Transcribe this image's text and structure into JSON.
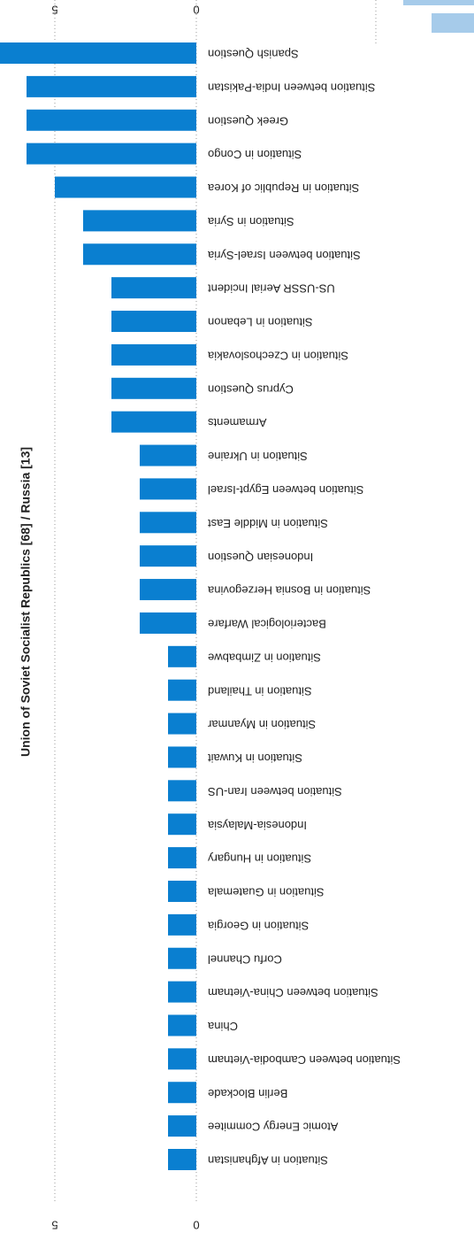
{
  "chart_data": {
    "type": "bar",
    "orientation": "horizontal",
    "title": "Union of Soviet Socialist Republics [68] / Russia [13]",
    "categories": [
      "Spanish Question",
      "Situation between India-Pakistan",
      "Greek Question",
      "Situation in Congo",
      "Situation in Republic of Korea",
      "Situation in Syria",
      "Situation between Israel-Syria",
      "US-USSR Aerial Incident",
      "Situation in Lebanon",
      "Situation in Czechoslovakia",
      "Cyprus Question",
      "Armaments",
      "Situation in Ukraine",
      "Situation between Egypt-Israel",
      "Situation in Middle East",
      "Indonesian Question",
      "Situation in Bosnia Herzegovina",
      "Bacteriological Warfare",
      "Situation in Zimbabwe",
      "Situation in Thailand",
      "Situation in Myanmar",
      "Situation in Kuwait",
      "Situation between Iran-US",
      "Indonesia-Malaysia",
      "Situation in Hungary",
      "Situation in Guatemala",
      "Situation in Georgia",
      "Corfu Channel",
      "Situation between China-Vietnam",
      "China",
      "Situation between Cambodia-Vietnam",
      "Berlin Blockade",
      "Atomic Energy Commitee",
      "Situation in Afghanistan"
    ],
    "values": [
      7,
      6,
      6,
      6,
      5,
      4,
      4,
      3,
      3,
      3,
      3,
      3,
      2,
      2,
      2,
      2,
      2,
      2,
      1,
      1,
      1,
      1,
      1,
      1,
      1,
      1,
      1,
      1,
      1,
      1,
      1,
      1,
      1,
      1
    ],
    "color": "#0a7fd0",
    "xlim": [
      0,
      7
    ],
    "xticks": [
      0,
      5
    ],
    "grid": true
  }
}
